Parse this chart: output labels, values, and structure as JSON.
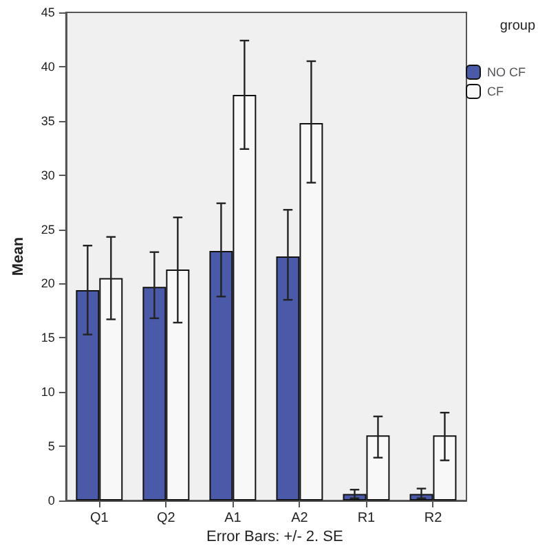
{
  "chart_data": {
    "type": "bar",
    "ylabel": "Mean",
    "legend_title": "group",
    "legend": "top right",
    "grid": false,
    "categories": [
      "Q1",
      "Q2",
      "A1",
      "A2",
      "R1",
      "R2"
    ],
    "ylim": [
      0,
      45
    ],
    "yticks": [
      0,
      5,
      10,
      15,
      20,
      25,
      30,
      35,
      40,
      45
    ],
    "series": [
      {
        "name": "NO CF",
        "color": "#4a5aa8",
        "values": [
          19.4,
          19.7,
          23.0,
          22.5,
          0.6,
          0.6
        ],
        "errors": [
          [
            15.3,
            23.5
          ],
          [
            16.8,
            22.9
          ],
          [
            18.8,
            27.4
          ],
          [
            18.5,
            26.8
          ],
          [
            0.2,
            1.0
          ],
          [
            0.2,
            1.1
          ]
        ]
      },
      {
        "name": "CF",
        "color": "#f8f8f8",
        "values": [
          20.5,
          21.3,
          37.4,
          34.8,
          6.0,
          6.0
        ],
        "errors": [
          [
            16.7,
            24.3
          ],
          [
            16.4,
            26.1
          ],
          [
            32.4,
            42.4
          ],
          [
            29.3,
            40.5
          ],
          [
            3.95,
            7.75
          ],
          [
            3.7,
            8.1
          ]
        ]
      }
    ],
    "annotations": [
      "Error Bars: +/- 2. SE"
    ]
  }
}
